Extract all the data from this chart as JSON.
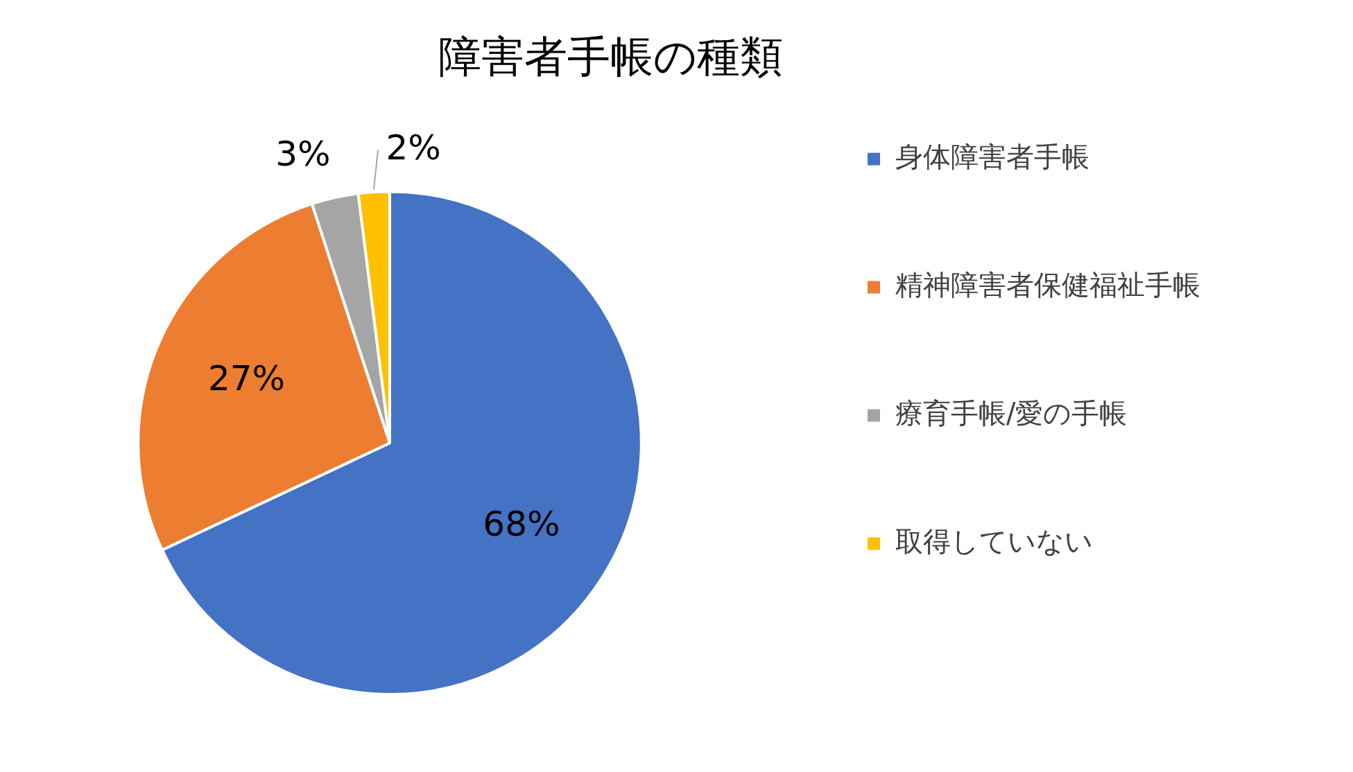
{
  "chart_data": {
    "type": "pie",
    "title": "障害者手帳の種類",
    "categories": [
      "身体障害者手帳",
      "精神障害者保健福祉手帳",
      "療育手帳/愛の手帳",
      "取得していない"
    ],
    "values": [
      68,
      27,
      3,
      2
    ],
    "value_labels": [
      "68%",
      "27%",
      "3%",
      "2%"
    ],
    "colors": [
      "#4472c4",
      "#ed7d31",
      "#a5a5a5",
      "#ffc000"
    ],
    "legend": "right"
  }
}
